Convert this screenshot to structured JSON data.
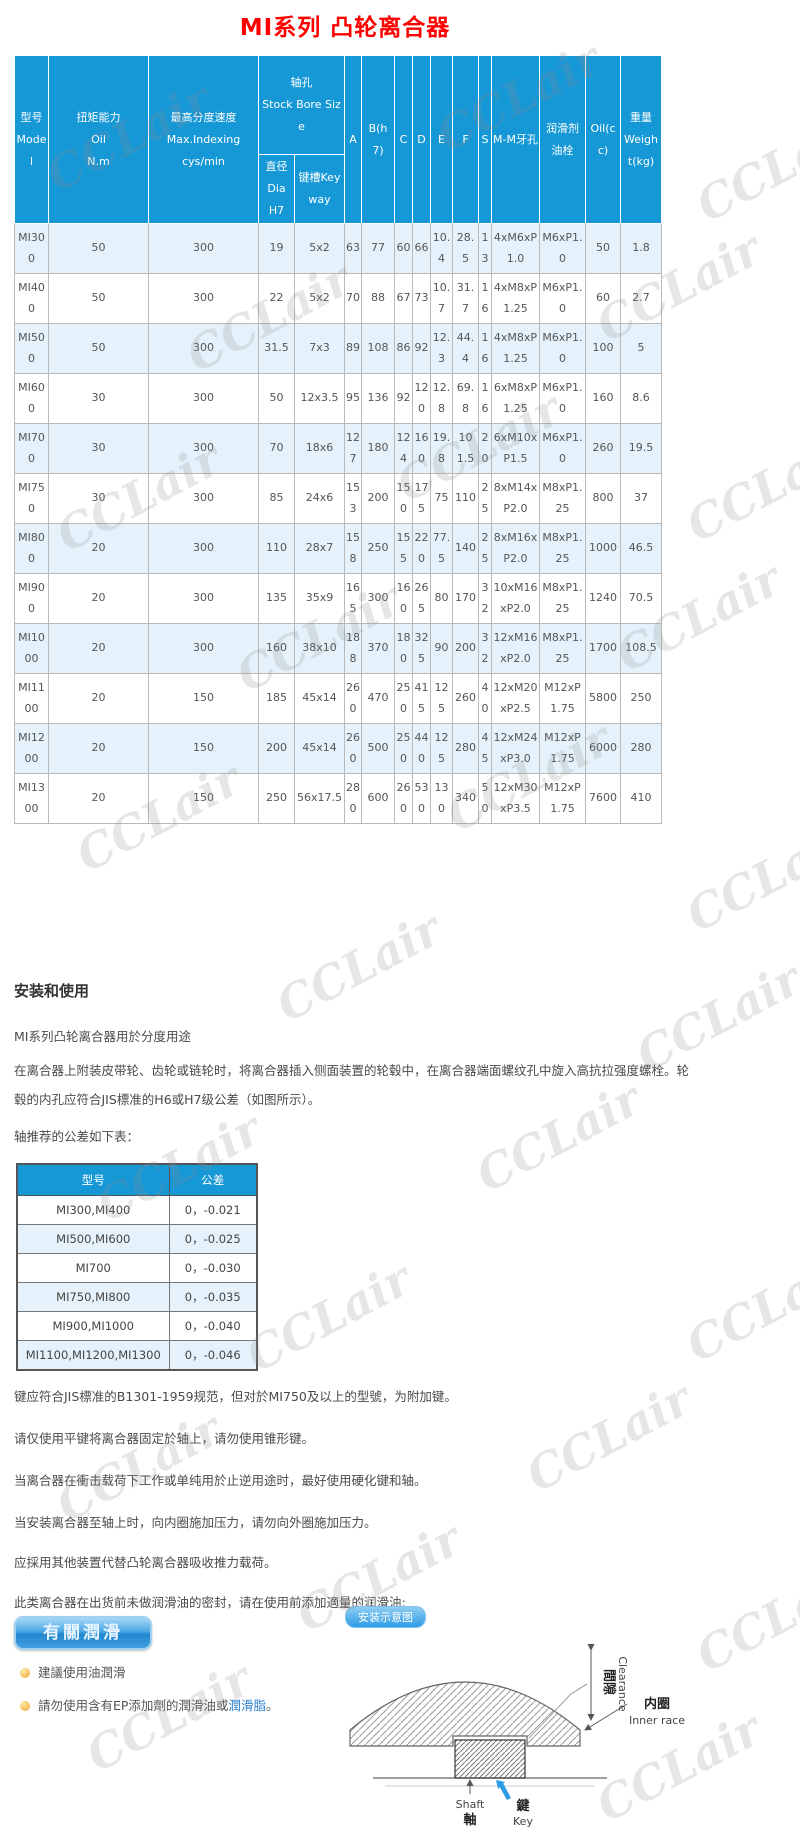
{
  "page_title": "MI系列 凸轮离合器",
  "watermark_text": "CCLair",
  "colors": {
    "header_blue": "#1798d6",
    "row_alt_blue": "#e6f2fb",
    "title_red": "#ff0000",
    "link_blue": "#2b7fd0",
    "bullet_orange": "#f0a32a"
  },
  "spec_table": {
    "headers_row1": [
      {
        "label": "型号\nModel",
        "rowspan": 2
      },
      {
        "label": "扭矩能力\nOil\nN.m",
        "rowspan": 2
      },
      {
        "label": "最高分度速度\nMax.Indexing\ncys/min",
        "rowspan": 2
      },
      {
        "label": "轴孔\nStock Bore Size",
        "colspan": 2
      },
      {
        "label": "A",
        "rowspan": 2
      },
      {
        "label": "B(h7)",
        "rowspan": 2
      },
      {
        "label": "C",
        "rowspan": 2
      },
      {
        "label": "D",
        "rowspan": 2
      },
      {
        "label": "E",
        "rowspan": 2
      },
      {
        "label": "F",
        "rowspan": 2
      },
      {
        "label": "S",
        "rowspan": 2
      },
      {
        "label": "M-M牙孔",
        "rowspan": 2
      },
      {
        "label": "润滑剂\n油栓",
        "rowspan": 2
      },
      {
        "label": "Oil(cc)",
        "rowspan": 2
      },
      {
        "label": "重量\nWeight(kg)",
        "rowspan": 2
      }
    ],
    "headers_row2": [
      "直径\nDia\nH7",
      "键槽Key\nway"
    ],
    "rows": [
      [
        "MI300",
        "50",
        "300",
        "19",
        "5x2",
        "63",
        "77",
        "60",
        "66",
        "10.4",
        "28.5",
        "13",
        "4xM6xP1.0",
        "M6xP1.0",
        "50",
        "1.8"
      ],
      [
        "MI400",
        "50",
        "300",
        "22",
        "5x2",
        "70",
        "88",
        "67",
        "73",
        "10.7",
        "31.7",
        "16",
        "4xM8xP1.25",
        "M6xP1.0",
        "60",
        "2.7"
      ],
      [
        "MI500",
        "50",
        "300",
        "31.5",
        "7x3",
        "89",
        "108",
        "86",
        "92",
        "12.3",
        "44.4",
        "16",
        "4xM8xP1.25",
        "M6xP1.0",
        "100",
        "5"
      ],
      [
        "MI600",
        "30",
        "300",
        "50",
        "12x3.5",
        "95",
        "136",
        "92",
        "120",
        "12.8",
        "69.8",
        "16",
        "6xM8xP1.25",
        "M6xP1.0",
        "160",
        "8.6"
      ],
      [
        "MI700",
        "30",
        "300",
        "70",
        "18x6",
        "127",
        "180",
        "124",
        "160",
        "19.8",
        "101.5",
        "20",
        "6xM10xP1.5",
        "M6xP1.0",
        "260",
        "19.5"
      ],
      [
        "MI750",
        "30",
        "300",
        "85",
        "24x6",
        "153",
        "200",
        "150",
        "175",
        "75",
        "110",
        "25",
        "8xM14xP2.0",
        "M8xP1.25",
        "800",
        "37"
      ],
      [
        "MI800",
        "20",
        "300",
        "110",
        "28x7",
        "158",
        "250",
        "155",
        "220",
        "77.5",
        "140",
        "25",
        "8xM16xP2.0",
        "M8xP1.25",
        "1000",
        "46.5"
      ],
      [
        "MI900",
        "20",
        "300",
        "135",
        "35x9",
        "165",
        "300",
        "160",
        "265",
        "80",
        "170",
        "32",
        "10xM16xP2.0",
        "M8xP1.25",
        "1240",
        "70.5"
      ],
      [
        "MI1000",
        "20",
        "300",
        "160",
        "38x10",
        "188",
        "370",
        "180",
        "325",
        "90",
        "200",
        "32",
        "12xM16xP2.0",
        "M8xP1.25",
        "1700",
        "108.5"
      ],
      [
        "MI1100",
        "20",
        "150",
        "185",
        "45x14",
        "260",
        "470",
        "250",
        "415",
        "125",
        "260",
        "40",
        "12xM20xP2.5",
        "M12xP1.75",
        "5800",
        "250"
      ],
      [
        "MI1200",
        "20",
        "150",
        "200",
        "45x14",
        "260",
        "500",
        "250",
        "440",
        "125",
        "280",
        "45",
        "12xM24xP3.0",
        "M12xP1.75",
        "6000",
        "280"
      ],
      [
        "MI1300",
        "20",
        "150",
        "250",
        "56x17.5",
        "280",
        "600",
        "260",
        "530",
        "130",
        "340",
        "50",
        "12xM30xP3.5",
        "M12xP1.75",
        "7600",
        "410"
      ]
    ]
  },
  "install": {
    "heading": "安装和使用",
    "intro": "MI系列凸轮离合器用於分度用途",
    "para_mounting": "在离合器上附装皮带轮、齿轮或链轮时，将离合器插入侧面装置的轮毂中，在离合器端面螺纹孔中旋入高抗拉强度螺栓。轮毂的内孔应符合JIS標准的H6或H7级公差（如图所示）。",
    "para_tolerance": "轴推荐的公差如下表："
  },
  "tolerance_table": {
    "headers": [
      "型号",
      "公差"
    ],
    "rows": [
      [
        "MI300,MI400",
        "0，-0.021"
      ],
      [
        "MI500,MI600",
        "0，-0.025"
      ],
      [
        "MI700",
        "0，-0.030"
      ],
      [
        "MI750,MI800",
        "0，-0.035"
      ],
      [
        "MI900,MI1000",
        "0，-0.040"
      ],
      [
        "MI1100,MI1200,MI1300",
        "0，-0.046"
      ]
    ]
  },
  "notes": [
    "键应符合JIS標准的B1301-1959规范，但对於MI750及以上的型號，为附加键。",
    "请仅使用平键将离合器固定於轴上，请勿使用锥形键。",
    "当离合器在衝击载荷下工作或单纯用於止逆用途时，最好使用硬化键和轴。",
    "当安装离合器至轴上时，向内圈施加压力，请勿向外圈施加压力。",
    "应採用其他装置代替凸轮离合器吸收推力载荷。",
    "此类离合器在出货前未做润滑油的密封，请在使用前添加適量的润滑油:"
  ],
  "lubrication": {
    "button_label": "有關潤滑",
    "tip_oil": "建議使用油潤滑",
    "tip_ep_prefix": "請勿使用含有EP添加劑的潤滑油或",
    "tip_ep_highlight": "潤滑脂",
    "tip_ep_suffix": "。"
  },
  "diagram": {
    "badge": "安装示意图",
    "labels": {
      "clearance_cn": "間隙",
      "clearance_en": "Clearance",
      "inner_race_cn": "内圈",
      "inner_race_en": "Inner race",
      "shaft_en": "Shaft",
      "shaft_cn": "軸",
      "key_cn": "鍵",
      "key_en": "Key"
    }
  }
}
